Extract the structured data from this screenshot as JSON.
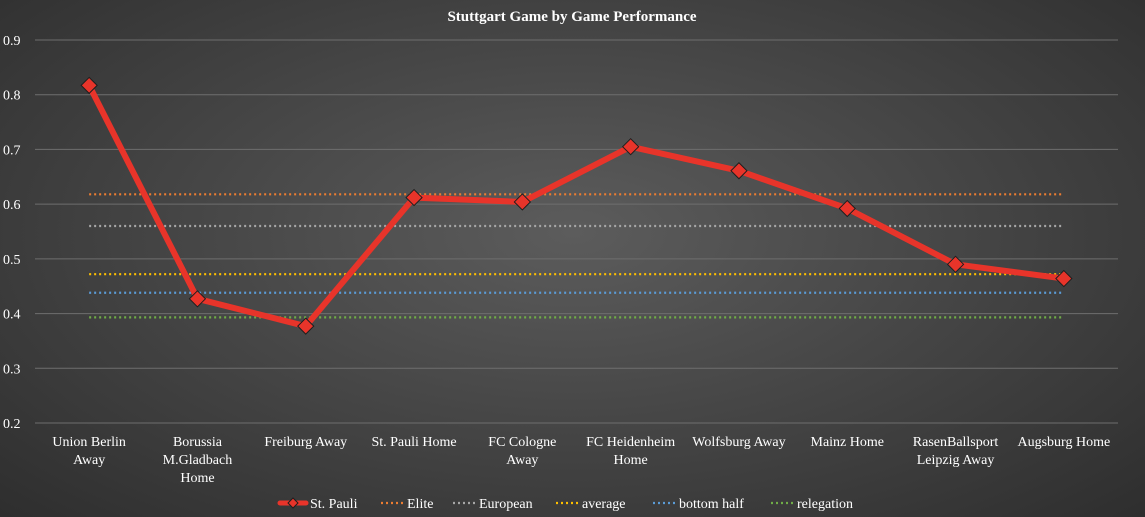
{
  "chart_data": {
    "type": "line",
    "title": "Stuttgart Game by Game Performance",
    "xlabel": "",
    "ylabel": "",
    "ylim": [
      0.2,
      0.9
    ],
    "yticks": [
      0.9,
      0.8,
      0.7,
      0.6,
      0.5,
      0.4,
      0.3,
      0.2
    ],
    "grid": true,
    "legend_position": "bottom",
    "categories": [
      [
        "Union Berlin",
        "Away"
      ],
      [
        "Borussia",
        "M.Gladbach",
        "Home"
      ],
      [
        "Freiburg Away"
      ],
      [
        "St. Pauli Home"
      ],
      [
        "FC Cologne",
        "Away"
      ],
      [
        "FC Heidenheim",
        "Home"
      ],
      [
        "Wolfsburg Away"
      ],
      [
        "Mainz Home"
      ],
      [
        "RasenBallsport",
        "Leipzig Away"
      ],
      [
        "Augsburg Home"
      ]
    ],
    "series": [
      {
        "name": "St. Pauli",
        "color": "#e8342a",
        "values": [
          0.817,
          0.427,
          0.377,
          0.612,
          0.604,
          0.705,
          0.661,
          0.592,
          0.49,
          0.464
        ]
      }
    ],
    "reference_lines": [
      {
        "name": "Elite",
        "color": "#ed7d31",
        "value": 0.618
      },
      {
        "name": "European",
        "color": "#a6a6a6",
        "value": 0.56
      },
      {
        "name": "average",
        "color": "#ffc000",
        "value": 0.472
      },
      {
        "name": "bottom half",
        "color": "#5b9bd5",
        "value": 0.438
      },
      {
        "name": "relegation",
        "color": "#70ad47",
        "value": 0.393
      }
    ]
  }
}
